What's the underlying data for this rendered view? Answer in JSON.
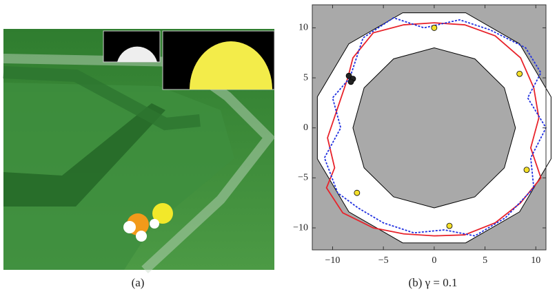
{
  "panel_a": {
    "caption": "(a)"
  },
  "chart_data": {
    "type": "scatter",
    "caption": "(b) γ = 0.1",
    "xlim": [
      -12,
      11
    ],
    "ylim": [
      -12.2,
      12.3
    ],
    "xticks": [
      {
        "value": -10,
        "label": "−10"
      },
      {
        "value": -5,
        "label": "−5"
      },
      0,
      5,
      10
    ],
    "yticks": [
      {
        "value": -10,
        "label": "−10"
      },
      {
        "value": -5,
        "label": "−5"
      },
      0,
      5,
      10
    ],
    "background": "#a9a9a9",
    "regions": [
      {
        "color": "#ffffff",
        "x": [
          11.5,
          8.4,
          3.1,
          -3.1,
          -8.4,
          -11.5,
          -11.5,
          -8.4,
          -3.1,
          3.1,
          8.4,
          11.5
        ],
        "y": [
          3.1,
          8.4,
          11.5,
          11.5,
          8.4,
          3.1,
          -3.1,
          -8.4,
          -11.5,
          -11.5,
          -8.4,
          -3.1
        ]
      },
      {
        "color": "#a9a9a9",
        "x": [
          8,
          6.9,
          4,
          0,
          -4,
          -6.9,
          -8,
          -6.9,
          -4,
          0,
          4,
          6.9
        ],
        "y": [
          0,
          4,
          6.9,
          8,
          6.9,
          4,
          0,
          -4,
          -6.9,
          -8,
          -6.9,
          -4
        ]
      }
    ],
    "series": [
      {
        "style": "line",
        "color": "#e8222a",
        "x": [
          -8.5,
          -9.5,
          -10.5,
          -9.8,
          -10.6,
          -9,
          -6,
          -3,
          0,
          3,
          6,
          8.5,
          10.5,
          9.5,
          10.3,
          9.8,
          8.5,
          6,
          3,
          0,
          -3,
          -6,
          -8,
          -8.5
        ],
        "values": [
          5,
          2,
          -1,
          -4,
          -6,
          -8.5,
          -10,
          -10.6,
          -10.8,
          -10.7,
          -9.5,
          -7.5,
          -5,
          -2,
          1,
          4,
          7,
          9.2,
          10.3,
          10.5,
          10.3,
          9.5,
          7,
          5
        ]
      },
      {
        "style": "dashed",
        "color": "#1f2fe0",
        "x": [
          -8.3,
          -10,
          -9.2,
          -10.8,
          -9.5,
          -7.5,
          -5,
          -2,
          1,
          4,
          7,
          9.8,
          9.5,
          11,
          9.2,
          10.5,
          9,
          5.5,
          2.5,
          -1,
          -4,
          -7,
          -8.3
        ],
        "values": [
          5,
          3,
          0,
          -3,
          -6.5,
          -8,
          -9.5,
          -10.5,
          -10.2,
          -10.8,
          -9,
          -6,
          -3,
          0,
          3,
          5.5,
          8,
          9.8,
          10.8,
          10,
          11,
          9,
          5
        ]
      },
      {
        "style": "points",
        "color": "#f5e02a",
        "x": [
          0,
          8.4,
          9.1,
          -7.6,
          1.5
        ],
        "values": [
          10,
          5.4,
          -4.2,
          -6.5,
          -9.8
        ]
      },
      {
        "style": "points",
        "color": "#222222",
        "x": [
          -8.4,
          -8,
          -8.2
        ],
        "values": [
          5.2,
          4.9,
          4.6
        ]
      }
    ]
  }
}
